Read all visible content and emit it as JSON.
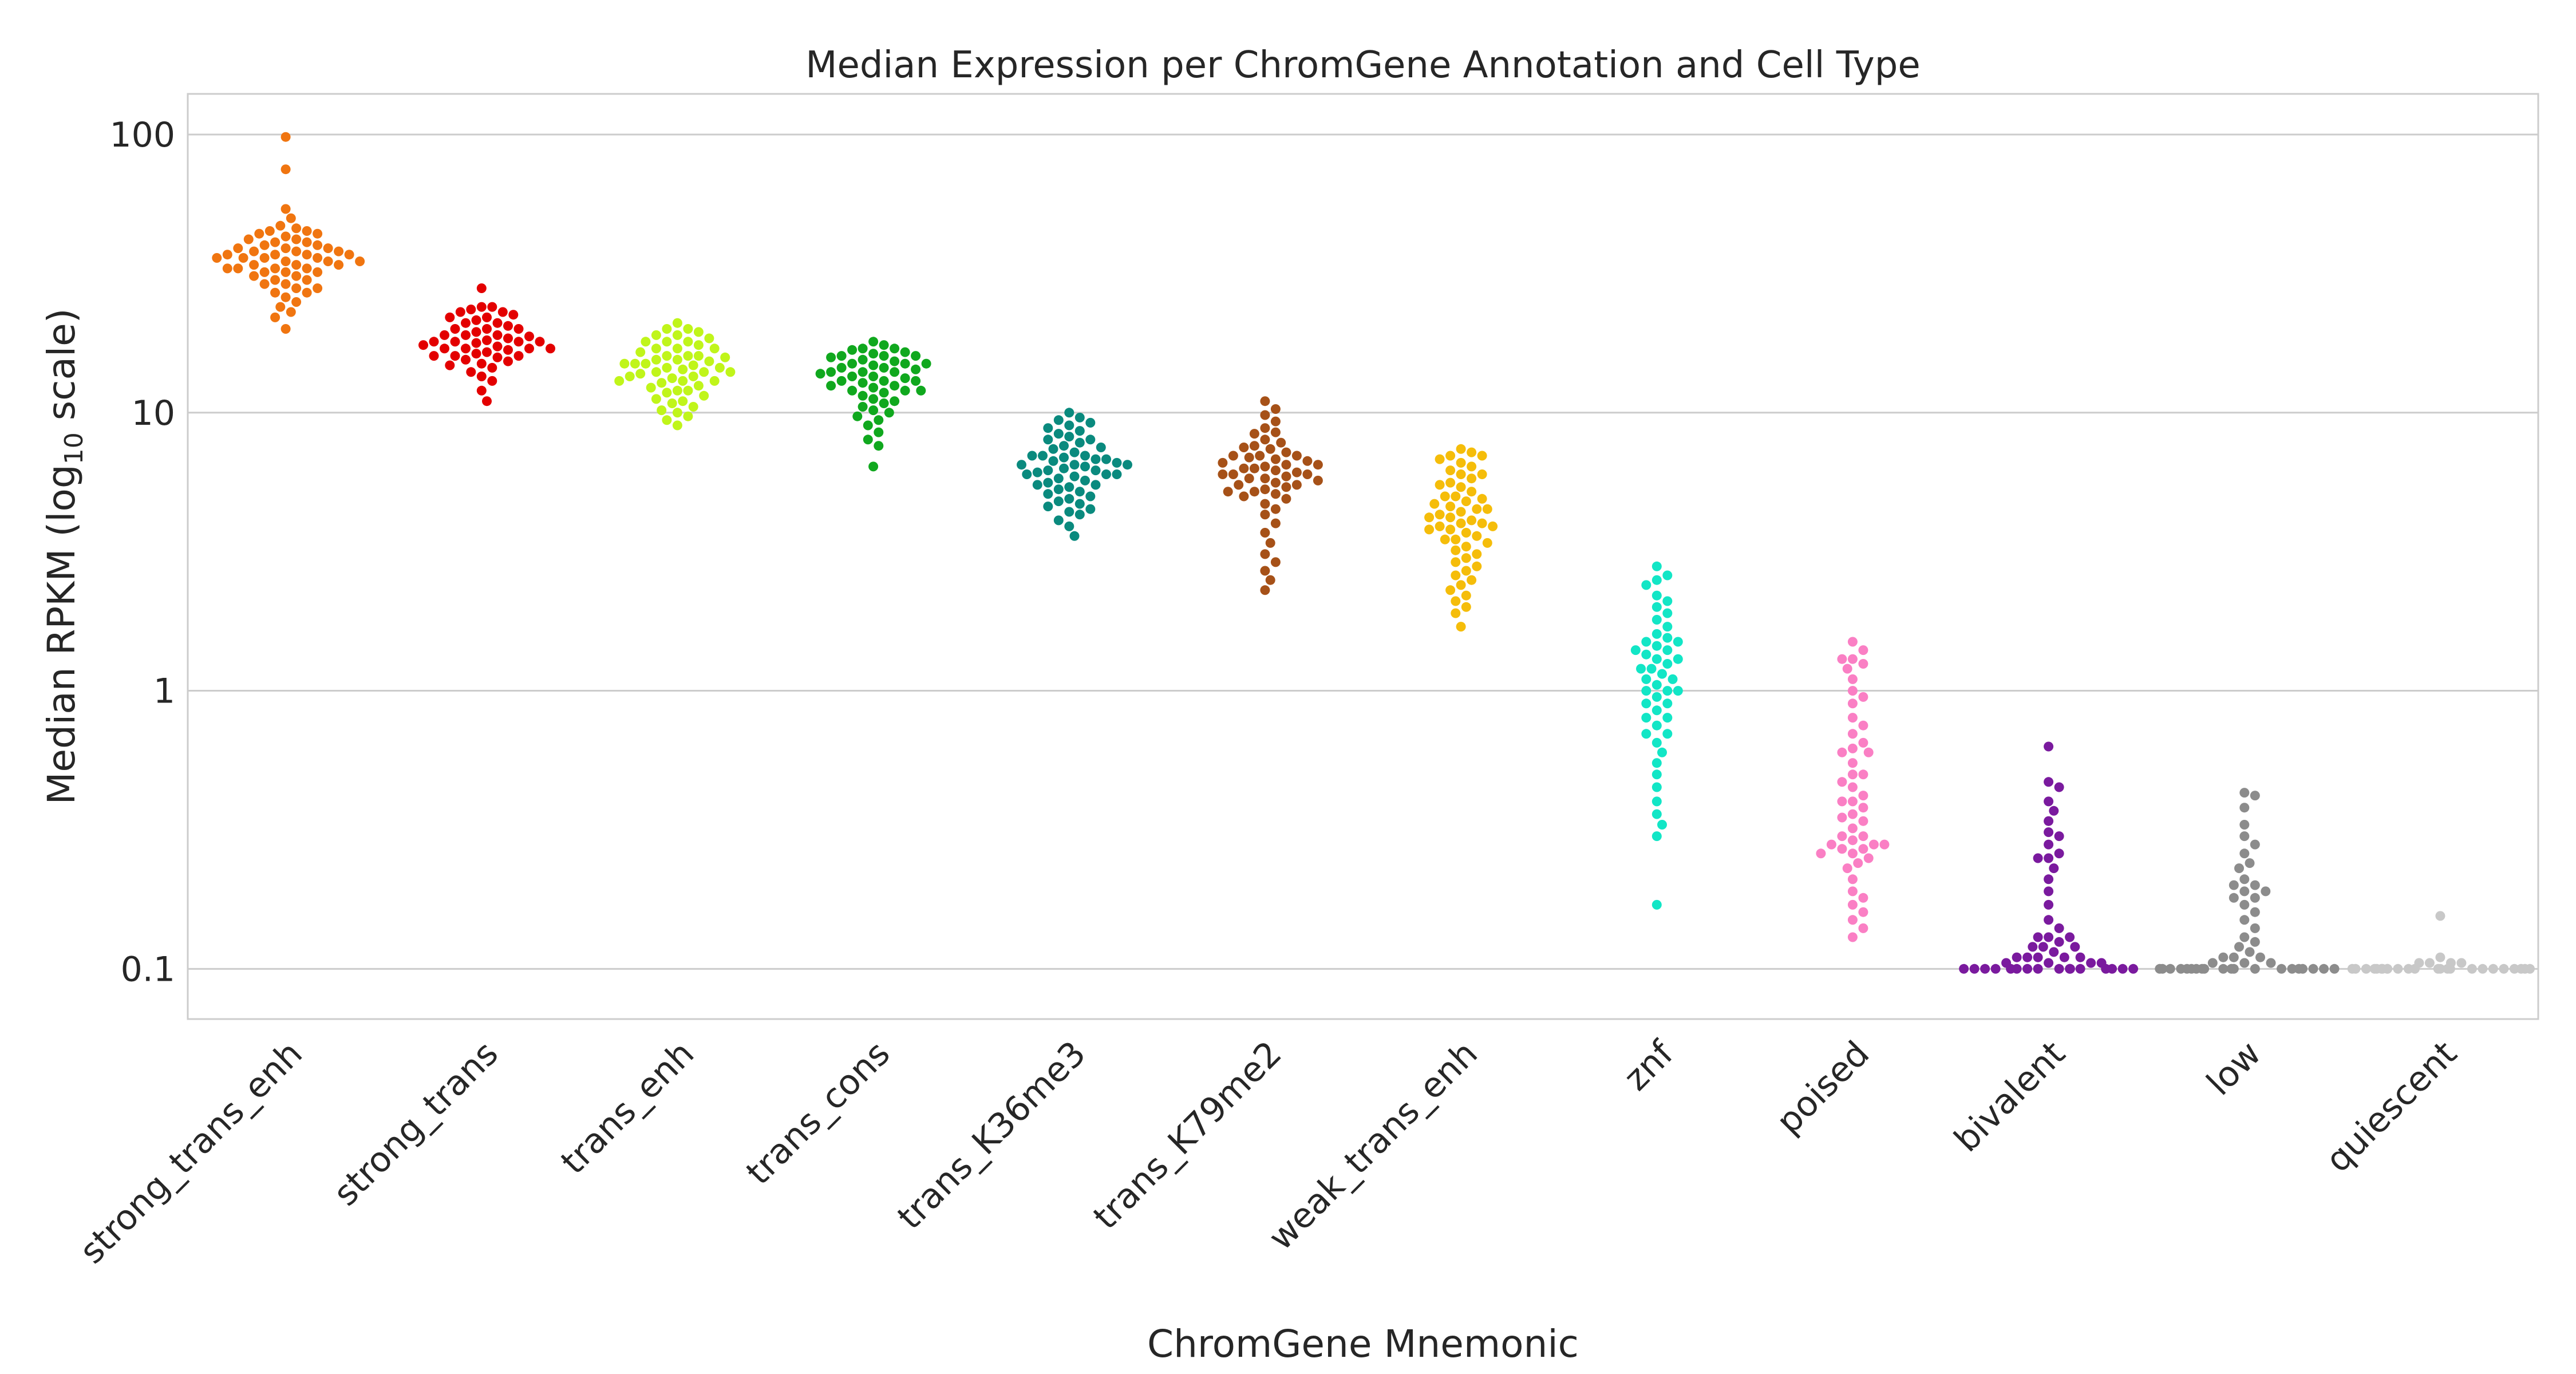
{
  "chart_data": {
    "type": "scatter",
    "subtype": "swarm",
    "title": "Median Expression per ChromGene Annotation and Cell Type",
    "xlabel": "ChromGene Mnemonic",
    "ylabel_prefix": "Median RPKM (log",
    "ylabel_sub": "10",
    "ylabel_suffix": " scale)",
    "yscale": "log",
    "ylim": [
      0.066,
      140
    ],
    "yticks": [
      0.1,
      1,
      10,
      100
    ],
    "ytick_labels": [
      "0.1",
      "1",
      "10",
      "100"
    ],
    "grid": "horizontal",
    "categories": [
      "strong_trans_enh",
      "strong_trans",
      "trans_enh",
      "trans_cons",
      "trans_K36me3",
      "trans_K79me2",
      "weak_trans_enh",
      "znf",
      "poised",
      "bivalent",
      "low",
      "quiescent"
    ],
    "colors": [
      "#f07510",
      "#e30000",
      "#c0f51a",
      "#10a81e",
      "#0a8a7e",
      "#a65118",
      "#f5bd0a",
      "#12e6c6",
      "#fa7fc4",
      "#7a1a9e",
      "#8c8c8c",
      "#c8c8c8"
    ],
    "series": [
      {
        "name": "strong_trans_enh",
        "values": [
          98,
          75,
          54,
          50,
          47,
          46,
          45,
          44,
          43,
          42,
          42,
          41,
          40,
          40,
          39,
          39,
          38,
          38,
          38,
          37,
          37,
          37,
          36,
          36,
          36,
          35,
          35,
          35,
          34,
          34,
          34,
          33,
          33,
          33,
          32,
          32,
          31,
          31,
          30,
          30,
          29,
          29,
          28,
          28,
          27,
          27,
          26,
          25,
          24,
          23,
          22,
          20,
          45,
          44,
          41,
          39,
          37,
          36,
          33,
          32
        ]
      },
      {
        "name": "strong_trans",
        "values": [
          28,
          24,
          23.5,
          23,
          22.5,
          22,
          21.5,
          21,
          20.5,
          20,
          20,
          19.5,
          19,
          19,
          18.8,
          18.5,
          18.2,
          18,
          18,
          17.8,
          17.5,
          17.3,
          17,
          17,
          16.8,
          16.5,
          16.3,
          16,
          16,
          15.8,
          15.5,
          15.3,
          15,
          14.8,
          14.5,
          14,
          13.5,
          13,
          12,
          11,
          21,
          20,
          19,
          18,
          17,
          16,
          24,
          23,
          22,
          17,
          18
        ]
      },
      {
        "name": "trans_enh",
        "values": [
          21,
          20,
          19.5,
          19,
          18.5,
          18,
          18,
          17.5,
          17,
          17,
          16.5,
          16,
          16,
          15.8,
          15.5,
          15.3,
          15,
          15,
          14.8,
          14.5,
          14.3,
          14,
          14,
          13.8,
          13.5,
          13.3,
          13,
          13,
          12.8,
          12.5,
          12.3,
          12,
          11.8,
          11.5,
          11.2,
          11,
          10.8,
          10.5,
          10.2,
          10,
          9.7,
          9.4,
          9,
          16,
          15,
          14,
          13,
          12,
          17,
          18,
          19,
          20,
          15.5,
          14.5,
          13.5
        ]
      },
      {
        "name": "trans_cons",
        "values": [
          18,
          17.5,
          17,
          16.8,
          16.5,
          16.3,
          16,
          16,
          15.8,
          15.5,
          15.3,
          15,
          15,
          14.8,
          14.5,
          14.3,
          14,
          14,
          13.8,
          13.5,
          13.3,
          13,
          13,
          12.8,
          12.5,
          12.3,
          12,
          12,
          11.8,
          11.5,
          11.2,
          11,
          10.8,
          10.5,
          10.2,
          10,
          9.7,
          9.4,
          9,
          8.5,
          8,
          7.6,
          6.4,
          15,
          14,
          13,
          12,
          16,
          17,
          14.5,
          13.5,
          12.5
        ]
      },
      {
        "name": "trans_K36me3",
        "values": [
          10,
          9.6,
          9.4,
          9.2,
          9,
          8.8,
          8.6,
          8.4,
          8.2,
          8,
          7.8,
          7.6,
          7.4,
          7.2,
          7,
          7,
          6.9,
          6.8,
          6.7,
          6.6,
          6.5,
          6.5,
          6.4,
          6.3,
          6.2,
          6.1,
          6,
          6,
          5.9,
          5.8,
          5.7,
          5.6,
          5.5,
          5.4,
          5.3,
          5.2,
          5.1,
          5,
          4.9,
          4.8,
          4.7,
          4.6,
          4.5,
          4.4,
          4.3,
          4.1,
          3.9,
          3.6,
          7,
          6.5,
          6,
          5.5,
          8,
          7.5,
          6.8,
          6.2
        ]
      },
      {
        "name": "trans_K79me2",
        "values": [
          11,
          10.3,
          9.8,
          9.3,
          8.8,
          8.4,
          8,
          7.8,
          7.6,
          7.4,
          7.2,
          7,
          7,
          6.9,
          6.8,
          6.7,
          6.6,
          6.5,
          6.4,
          6.3,
          6.2,
          6.1,
          6,
          6,
          5.9,
          5.8,
          5.7,
          5.6,
          5.5,
          5.4,
          5.3,
          5.2,
          5.1,
          5,
          4.9,
          4.7,
          4.5,
          4.3,
          4,
          3.7,
          3.4,
          3.1,
          2.9,
          2.7,
          2.5,
          2.3,
          7,
          6.5,
          6,
          5.5,
          7.5,
          8.5,
          6.3,
          5.8,
          5.2
        ]
      },
      {
        "name": "weak_trans_enh",
        "values": [
          7.4,
          7.2,
          7,
          6.8,
          6.6,
          6.4,
          6.2,
          6,
          5.8,
          5.6,
          5.4,
          5.2,
          5,
          4.9,
          4.8,
          4.7,
          4.6,
          4.5,
          4.4,
          4.3,
          4.2,
          4.1,
          4,
          3.9,
          3.8,
          3.8,
          3.7,
          3.6,
          3.5,
          3.4,
          3.3,
          3.2,
          3.1,
          3,
          2.9,
          2.8,
          2.7,
          2.6,
          2.5,
          2.4,
          2.3,
          2.2,
          2.1,
          2,
          1.9,
          1.7,
          5,
          4.5,
          4,
          3.5,
          6,
          7,
          5.5,
          4.2,
          3.9
        ]
      },
      {
        "name": "znf",
        "values": [
          2.8,
          2.6,
          2.5,
          2.4,
          2.2,
          2.1,
          2,
          1.9,
          1.8,
          1.7,
          1.6,
          1.55,
          1.5,
          1.45,
          1.4,
          1.35,
          1.3,
          1.25,
          1.2,
          1.15,
          1.1,
          1.05,
          1,
          1,
          0.95,
          0.9,
          0.85,
          0.8,
          0.75,
          0.7,
          0.65,
          0.6,
          0.55,
          0.5,
          0.45,
          0.4,
          0.36,
          0.33,
          0.3,
          0.17,
          1.5,
          1.4,
          1.2,
          1.1,
          0.9,
          0.8,
          1.3,
          1.0,
          0.7
        ]
      },
      {
        "name": "poised",
        "values": [
          1.5,
          1.4,
          1.3,
          1.25,
          1.2,
          1.1,
          1.0,
          0.95,
          0.9,
          0.8,
          0.75,
          0.7,
          0.65,
          0.62,
          0.6,
          0.55,
          0.5,
          0.47,
          0.45,
          0.42,
          0.4,
          0.38,
          0.36,
          0.34,
          0.32,
          0.3,
          0.29,
          0.28,
          0.27,
          0.26,
          0.25,
          0.24,
          0.23,
          0.21,
          0.19,
          0.18,
          0.17,
          0.16,
          0.15,
          0.14,
          0.13,
          0.27,
          0.28,
          0.3,
          0.35,
          0.4,
          0.5,
          0.6,
          1.3,
          0.28,
          0.26
        ]
      },
      {
        "name": "bivalent",
        "values": [
          0.63,
          0.47,
          0.45,
          0.4,
          0.37,
          0.34,
          0.31,
          0.28,
          0.26,
          0.25,
          0.23,
          0.21,
          0.19,
          0.17,
          0.15,
          0.14,
          0.13,
          0.13,
          0.125,
          0.12,
          0.12,
          0.115,
          0.11,
          0.11,
          0.11,
          0.105,
          0.105,
          0.105,
          0.1,
          0.1,
          0.1,
          0.1,
          0.1,
          0.1,
          0.1,
          0.1,
          0.1,
          0.1,
          0.1,
          0.1,
          0.1,
          0.1,
          0.1,
          0.1,
          0.11,
          0.12,
          0.13,
          0.25,
          0.3,
          0.105,
          0.11
        ]
      },
      {
        "name": "low",
        "values": [
          0.43,
          0.42,
          0.38,
          0.33,
          0.3,
          0.28,
          0.26,
          0.24,
          0.23,
          0.21,
          0.2,
          0.19,
          0.18,
          0.17,
          0.16,
          0.15,
          0.14,
          0.13,
          0.125,
          0.12,
          0.115,
          0.11,
          0.11,
          0.105,
          0.105,
          0.105,
          0.1,
          0.1,
          0.1,
          0.1,
          0.1,
          0.1,
          0.1,
          0.1,
          0.1,
          0.1,
          0.1,
          0.1,
          0.1,
          0.1,
          0.1,
          0.1,
          0.1,
          0.1,
          0.1,
          0.1,
          0.19,
          0.18,
          0.2,
          0.11
        ]
      },
      {
        "name": "quiescent",
        "values": [
          0.155,
          0.11,
          0.105,
          0.105,
          0.105,
          0.1,
          0.1,
          0.1,
          0.1,
          0.1,
          0.1,
          0.1,
          0.1,
          0.1,
          0.1,
          0.1,
          0.1,
          0.1,
          0.1,
          0.1,
          0.1,
          0.1,
          0.1,
          0.1,
          0.1,
          0.1,
          0.1,
          0.1,
          0.105,
          0.1
        ]
      }
    ]
  }
}
